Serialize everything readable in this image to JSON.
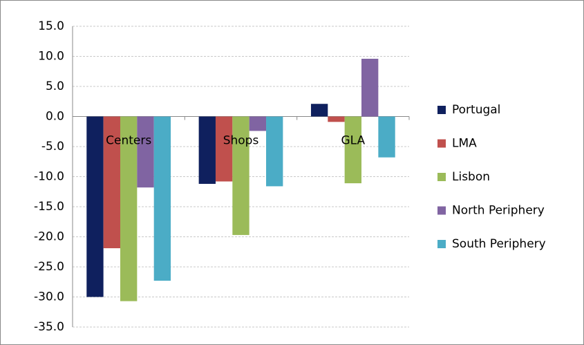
{
  "chart_data": {
    "type": "bar",
    "categories": [
      "Centers",
      "Shops",
      "GLA"
    ],
    "series": [
      {
        "name": "Portugal",
        "color": "#0f205e",
        "values": [
          -30.0,
          -11.2,
          2.1
        ]
      },
      {
        "name": "LMA",
        "color": "#c0504d",
        "values": [
          -21.9,
          -10.8,
          -0.9
        ]
      },
      {
        "name": "Lisbon",
        "color": "#9bbb59",
        "values": [
          -30.7,
          -19.7,
          -11.1
        ]
      },
      {
        "name": "North Periphery",
        "color": "#8064a2",
        "values": [
          -11.8,
          -2.4,
          9.6
        ]
      },
      {
        "name": "South Periphery",
        "color": "#4bacc6",
        "values": [
          -27.3,
          -11.6,
          -6.8
        ]
      }
    ],
    "ylim": [
      -35,
      15
    ],
    "yticks": [
      {
        "value": -35,
        "label": "-35.0"
      },
      {
        "value": -30,
        "label": "-30.0"
      },
      {
        "value": -25,
        "label": "-25.0"
      },
      {
        "value": -20,
        "label": "-20.0"
      },
      {
        "value": -15,
        "label": "-15.0"
      },
      {
        "value": -10,
        "label": "-10.0"
      },
      {
        "value": -5,
        "label": "-5.0"
      },
      {
        "value": 0,
        "label": "0.0"
      },
      {
        "value": 5,
        "label": "5.0"
      },
      {
        "value": 10,
        "label": "10.0"
      },
      {
        "value": 15,
        "label": "15.0"
      }
    ],
    "grid": true,
    "legend": "right"
  }
}
